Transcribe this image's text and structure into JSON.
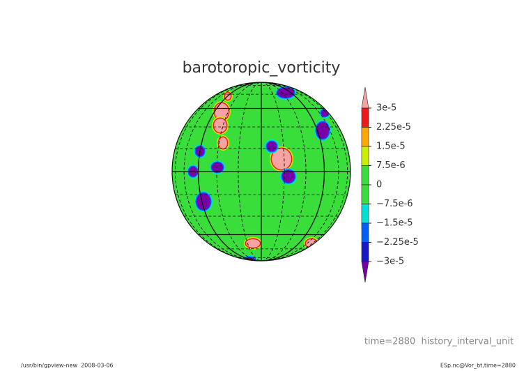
{
  "chart_data": {
    "type": "contour",
    "title": "barotoropic_vorticity",
    "colorbar": {
      "levels": [
        {
          "value": 3e-05,
          "label": "3e-5"
        },
        {
          "value": 2.25e-05,
          "label": "2.25e-5"
        },
        {
          "value": 1.5e-05,
          "label": "1.5e-5"
        },
        {
          "value": 7.5e-06,
          "label": "7.5e-6"
        },
        0,
        {
          "value": -7.5e-06,
          "label": "−7.5e-6"
        },
        {
          "value": -1.5e-05,
          "label": "−1.5e-5"
        },
        {
          "value": -2.25e-05,
          "label": "−2.25e-5"
        },
        {
          "value": -3e-05,
          "label": "−3e-5"
        }
      ],
      "colors": [
        "#f5a3a3",
        "#f01818",
        "#ffa800",
        "#c8f000",
        "#3ade3a",
        "#3ade3a",
        "#00e0d8",
        "#0060ff",
        "#1818c8",
        "#7800a8"
      ]
    },
    "annotation": "time=2880  history_interval_unit",
    "footer_left": "/usr/bin/gpview-new  2008-03-06",
    "footer_right": "ESp.nc@Vor_bt,time=2880"
  }
}
